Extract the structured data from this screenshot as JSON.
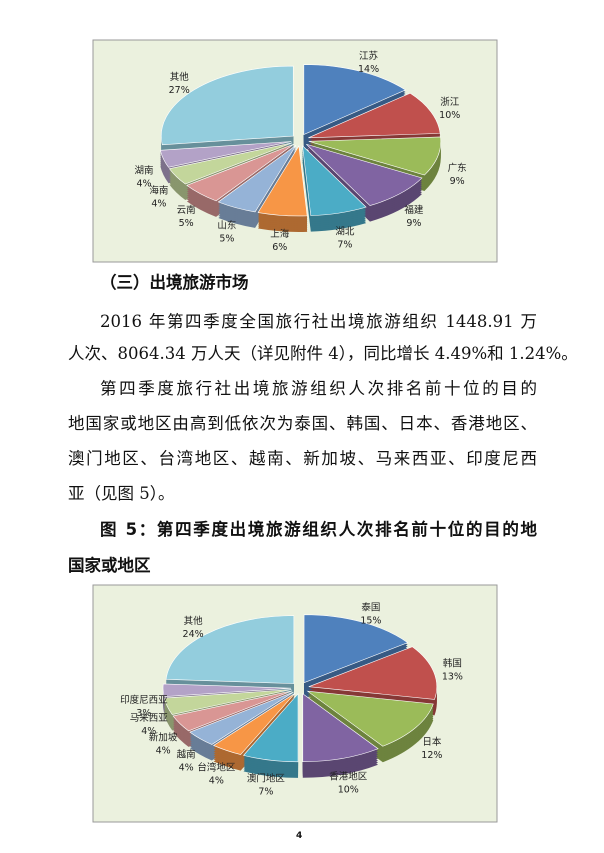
{
  "chart_data": [
    {
      "type": "pie",
      "categories": [
        "江苏",
        "浙江",
        "广东",
        "福建",
        "湖北",
        "上海",
        "山东",
        "云南",
        "海南",
        "湖南",
        "其他"
      ],
      "values": [
        14,
        10,
        9,
        9,
        7,
        6,
        5,
        5,
        4,
        4,
        27
      ],
      "value_labels": [
        "14%",
        "10%",
        "9%",
        "9%",
        "7%",
        "6%",
        "5%",
        "5%",
        "4%",
        "4%",
        "27%"
      ],
      "colors": [
        "#4f81bd",
        "#c0504d",
        "#9bbb59",
        "#8064a2",
        "#4bacc6",
        "#f79646",
        "#95b3d7",
        "#d99694",
        "#c3d69b",
        "#b3a2c7",
        "#93cddd"
      ]
    },
    {
      "type": "pie",
      "categories": [
        "泰国",
        "韩国",
        "日本",
        "香港地区",
        "澳门地区",
        "台湾地区",
        "越南",
        "新加坡",
        "马来西亚",
        "印度尼西亚",
        "其他"
      ],
      "values": [
        15,
        13,
        12,
        10,
        7,
        4,
        4,
        4,
        4,
        3,
        24
      ],
      "value_labels": [
        "15%",
        "13%",
        "12%",
        "10%",
        "7%",
        "4%",
        "4%",
        "4%",
        "4%",
        "3%",
        "24%"
      ],
      "colors": [
        "#4f81bd",
        "#c0504d",
        "#9bbb59",
        "#8064a2",
        "#4bacc6",
        "#f79646",
        "#95b3d7",
        "#d99694",
        "#c3d69b",
        "#b3a2c7",
        "#93cddd"
      ]
    }
  ],
  "document": {
    "heading": "（三）出境旅游市场",
    "paragraphs": [
      [
        "2016 年第四季度全国旅行社出境旅游组织 1448.91 万",
        "人次、8064.34 万人天（详见附件 4），同比增长 4.49%和 1.24%。"
      ],
      [
        "第四季度旅行社出境旅游组织人次排名前十位的目的",
        "地国家或地区由高到低依次为泰国、韩国、日本、香港地区、",
        "澳门地区、台湾地区、越南、新加坡、马来西亚、印度尼西",
        "亚（见图 5）。"
      ]
    ],
    "caption": [
      "图 5：第四季度出境旅游组织人次排名前十位的目的地",
      "国家或地区"
    ],
    "page_number": "4"
  }
}
